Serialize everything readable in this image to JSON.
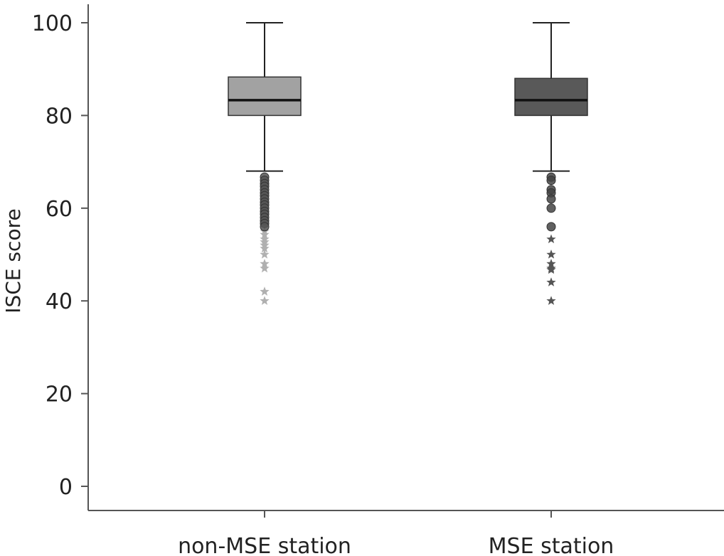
{
  "chart_data": {
    "type": "boxplot",
    "title": "",
    "xlabel": "",
    "ylabel": "ISCE score",
    "ylim": [
      0,
      100
    ],
    "yticks": [
      0,
      20,
      40,
      60,
      80,
      100
    ],
    "grid": false,
    "legend": "none",
    "categories": [
      "non-MSE station",
      "MSE station"
    ],
    "series": [
      {
        "category": "non-MSE station",
        "color": "#a2a2a2",
        "min": 68,
        "q1": 80,
        "median": 83.3,
        "q3": 88.3,
        "max": 100,
        "outliers": [
          66.7,
          66,
          65.3,
          64.7,
          64,
          63.3,
          62.7,
          62,
          61.3,
          60.7,
          60,
          59.3,
          58.7,
          58,
          57.3,
          56.7,
          56
        ],
        "outlier_color": "#555555",
        "extremes": [
          55,
          54.3,
          53.3,
          52.7,
          52,
          51.3,
          50,
          48,
          47,
          42,
          40
        ],
        "extreme_color": "#b0b0b0"
      },
      {
        "category": "MSE station",
        "color": "#595959",
        "min": 68,
        "q1": 80,
        "median": 83.3,
        "q3": 88,
        "max": 100,
        "outliers": [
          66.7,
          66,
          64,
          63.3,
          62,
          60,
          56
        ],
        "outlier_color": "#444444",
        "extremes": [
          53.3,
          50,
          48,
          47,
          46.7,
          44,
          40
        ],
        "extreme_color": "#555555"
      }
    ]
  }
}
